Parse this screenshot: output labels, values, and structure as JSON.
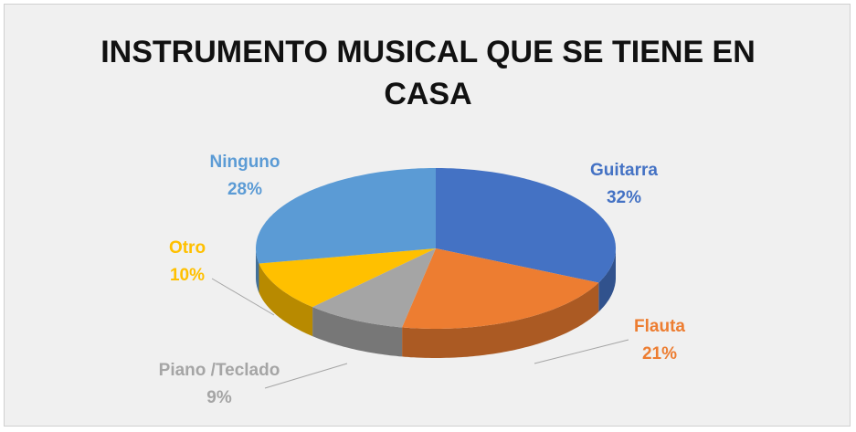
{
  "chart_data": {
    "type": "pie",
    "title": "INSTRUMENTO MUSICAL QUE SE TIENE EN CASA",
    "categories": [
      "Guitarra",
      "Flauta",
      "Piano /Teclado",
      "Otro",
      "Ninguno"
    ],
    "values": [
      32,
      21,
      9,
      10,
      28
    ],
    "value_labels": [
      "32%",
      "21%",
      "9%",
      "10%",
      "28%"
    ],
    "colors": [
      "#4472c4",
      "#ed7d31",
      "#a5a5a5",
      "#ffc000",
      "#5b9bd5"
    ]
  }
}
